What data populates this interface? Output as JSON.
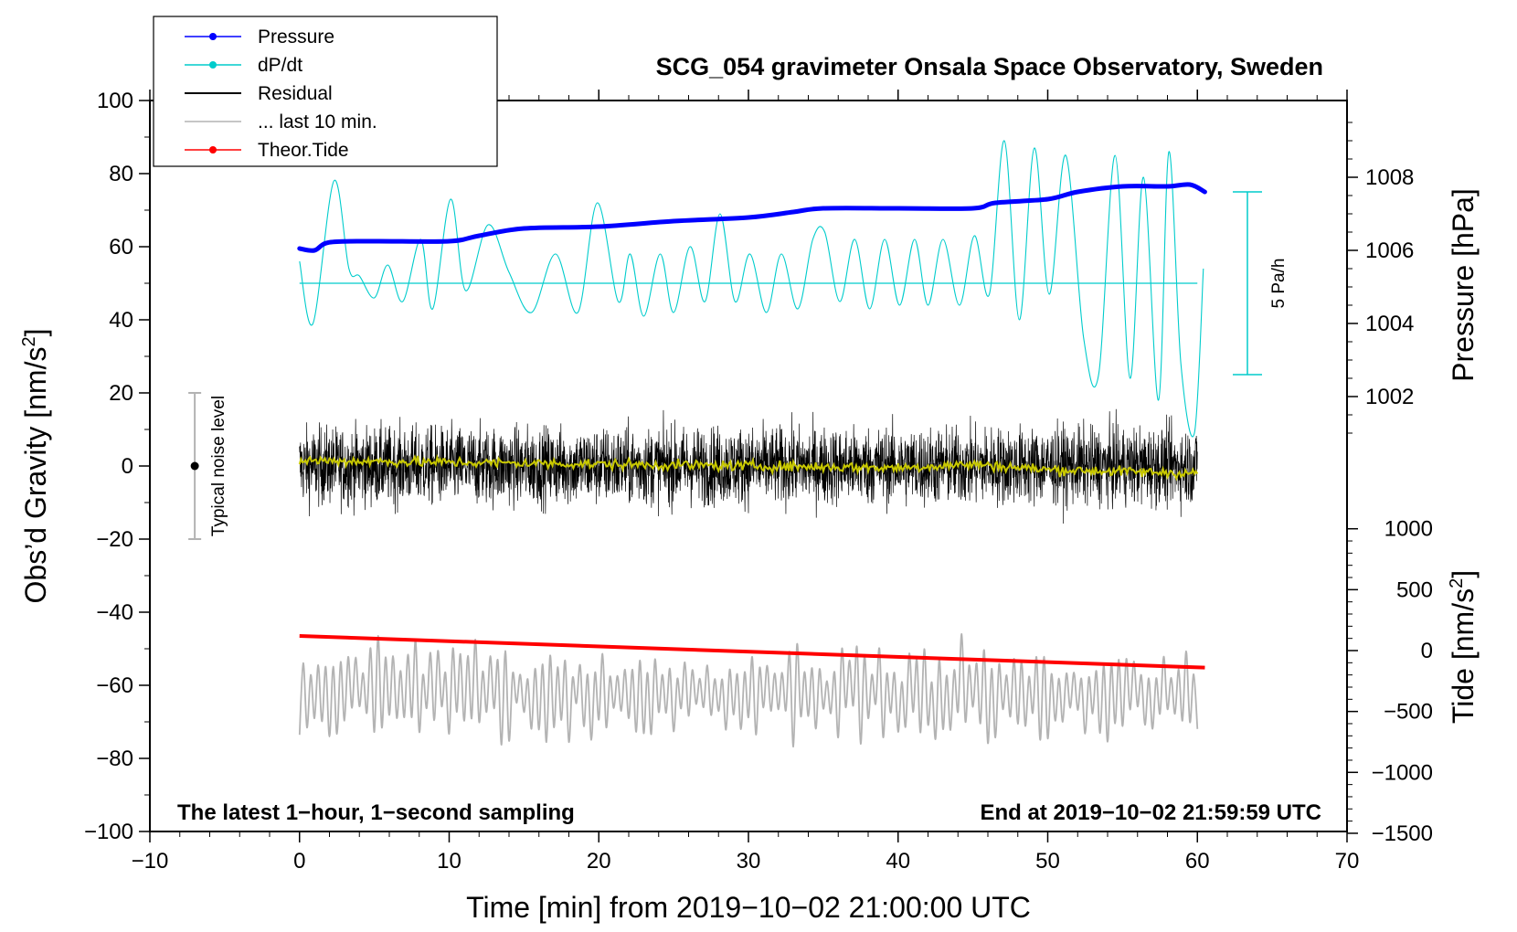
{
  "chart_data": {
    "type": "line",
    "title": "SCG_054 gravimeter Onsala Space Observatory, Sweden",
    "xlabel": "Time [min] from 2019−10−02 21:00:00 UTC",
    "xlim": [
      -10,
      70
    ],
    "x_ticks": [
      -10,
      0,
      10,
      20,
      30,
      40,
      50,
      60,
      70
    ],
    "x_tick_labels": [
      "−10",
      "0",
      "10",
      "20",
      "30",
      "40",
      "50",
      "60",
      "70"
    ],
    "left_axis": {
      "label_main": "Obs’d Gravity [nm/s",
      "label_sup": "2",
      "label_end": "]",
      "ylim": [
        -100,
        100
      ],
      "ticks": [
        -100,
        -80,
        -60,
        -40,
        -20,
        0,
        20,
        40,
        60,
        80,
        100
      ],
      "tick_labels": [
        "−100",
        "−80",
        "−60",
        "−40",
        "−20",
        "0",
        "20",
        "40",
        "60",
        "80",
        "100"
      ]
    },
    "pressure_axis": {
      "label": "Pressure [hPa]",
      "ticks": [
        1002,
        1004,
        1006,
        1008
      ],
      "tick_labels": [
        "1002",
        "1004",
        "1006",
        "1008"
      ]
    },
    "tide_axis": {
      "label_main": "Tide [nm/s",
      "label_sup": "2",
      "label_end": "]",
      "ticks": [
        -1500,
        -1000,
        -500,
        0,
        500,
        1000
      ],
      "tick_labels": [
        "−1500",
        "−1000",
        "−500",
        "0",
        "500",
        "1000"
      ]
    },
    "legend": {
      "position": "top-left",
      "items": [
        {
          "label": "Pressure",
          "color": "#0000ff",
          "marker": true
        },
        {
          "label": "dP/dt",
          "color": "#00cccc",
          "marker": true
        },
        {
          "label": "Residual",
          "color": "#000000",
          "marker": false
        },
        {
          "label": "... last 10 min.",
          "color": "#b3b3b3",
          "marker": false
        },
        {
          "label": "Theor.Tide",
          "color": "#ff0000",
          "marker": true
        }
      ]
    },
    "series": [
      {
        "name": "Pressure",
        "axis": "pressure",
        "color": "#0000ff",
        "x": [
          0,
          1,
          2,
          5,
          10,
          12,
          15,
          20,
          25,
          30,
          33,
          35,
          40,
          45,
          46.5,
          50,
          52,
          55,
          58,
          59.5,
          60.5
        ],
        "y": [
          1006.05,
          1006.0,
          1006.22,
          1006.25,
          1006.25,
          1006.4,
          1006.6,
          1006.65,
          1006.8,
          1006.9,
          1007.05,
          1007.15,
          1007.15,
          1007.15,
          1007.3,
          1007.4,
          1007.6,
          1007.75,
          1007.75,
          1007.8,
          1007.6
        ]
      },
      {
        "name": "dP/dt",
        "axis": "left",
        "color": "#00cccc",
        "baseline": 50,
        "scale_bar_label": "5 Pa/h",
        "scale_bar_range": [
          25,
          75
        ],
        "x": [
          0,
          0.9,
          2.3,
          3.3,
          4.0,
          5.0,
          5.9,
          6.9,
          8.1,
          8.9,
          10.1,
          11.1,
          12.6,
          14.0,
          15.5,
          17.1,
          18.6,
          19.9,
          21.3,
          22.1,
          23.0,
          24.1,
          25.0,
          26.1,
          27.1,
          28.1,
          29.1,
          30.1,
          31.2,
          32.2,
          33.3,
          34.3,
          35.1,
          36.1,
          37.1,
          38.1,
          39.1,
          40.1,
          41.1,
          42.0,
          43.0,
          44.1,
          45.1,
          46.1,
          47.1,
          48.1,
          49.1,
          50.1,
          51.2,
          52.4,
          53.4,
          54.5,
          55.5,
          56.4,
          57.4,
          58.1,
          58.9,
          59.8,
          60.4
        ],
        "y": [
          56,
          39,
          78,
          54,
          52,
          46,
          55,
          45,
          62,
          43,
          73,
          48,
          66,
          53,
          42,
          58,
          42,
          72,
          45,
          58,
          41,
          58,
          42,
          60,
          45,
          69,
          45,
          58,
          42,
          58,
          43,
          62,
          64,
          45,
          62,
          43,
          62,
          44,
          62,
          44,
          62,
          44,
          63,
          47,
          89,
          40,
          87,
          47,
          85,
          35,
          25,
          85,
          24,
          79,
          18,
          86,
          28,
          9,
          54
        ]
      },
      {
        "name": "Residual",
        "axis": "left",
        "color": "#000000",
        "description": "1-second sampling noise, range approx -20 to +17 around ~0",
        "x": [
          0,
          60
        ],
        "mean": 0
      },
      {
        "name": "Residual (smoothed)",
        "axis": "left",
        "color": "#c8c800",
        "x": [
          0,
          10,
          20,
          30,
          40,
          45,
          50,
          60
        ],
        "y": [
          1.5,
          1.0,
          0.5,
          0.0,
          -0.5,
          0.5,
          -1.0,
          -2.0
        ]
      },
      {
        "name": "... last 10 min.",
        "axis": "left",
        "color": "#b3b3b3",
        "description": "oscillating trace around -62, range approx -80 to -44",
        "x": [
          0,
          60
        ],
        "mean": -62
      },
      {
        "name": "Theor.Tide",
        "axis": "tide",
        "color": "#ff0000",
        "x": [
          0,
          60.5
        ],
        "y": [
          120,
          -140
        ]
      }
    ],
    "noise_marker": {
      "label": "Typical noise level",
      "x": -7,
      "y": 0,
      "range": [
        -20,
        20
      ]
    },
    "note_left": "The latest 1−hour, 1−second sampling",
    "note_right": "End at 2019−10−02 21:59:59 UTC"
  }
}
